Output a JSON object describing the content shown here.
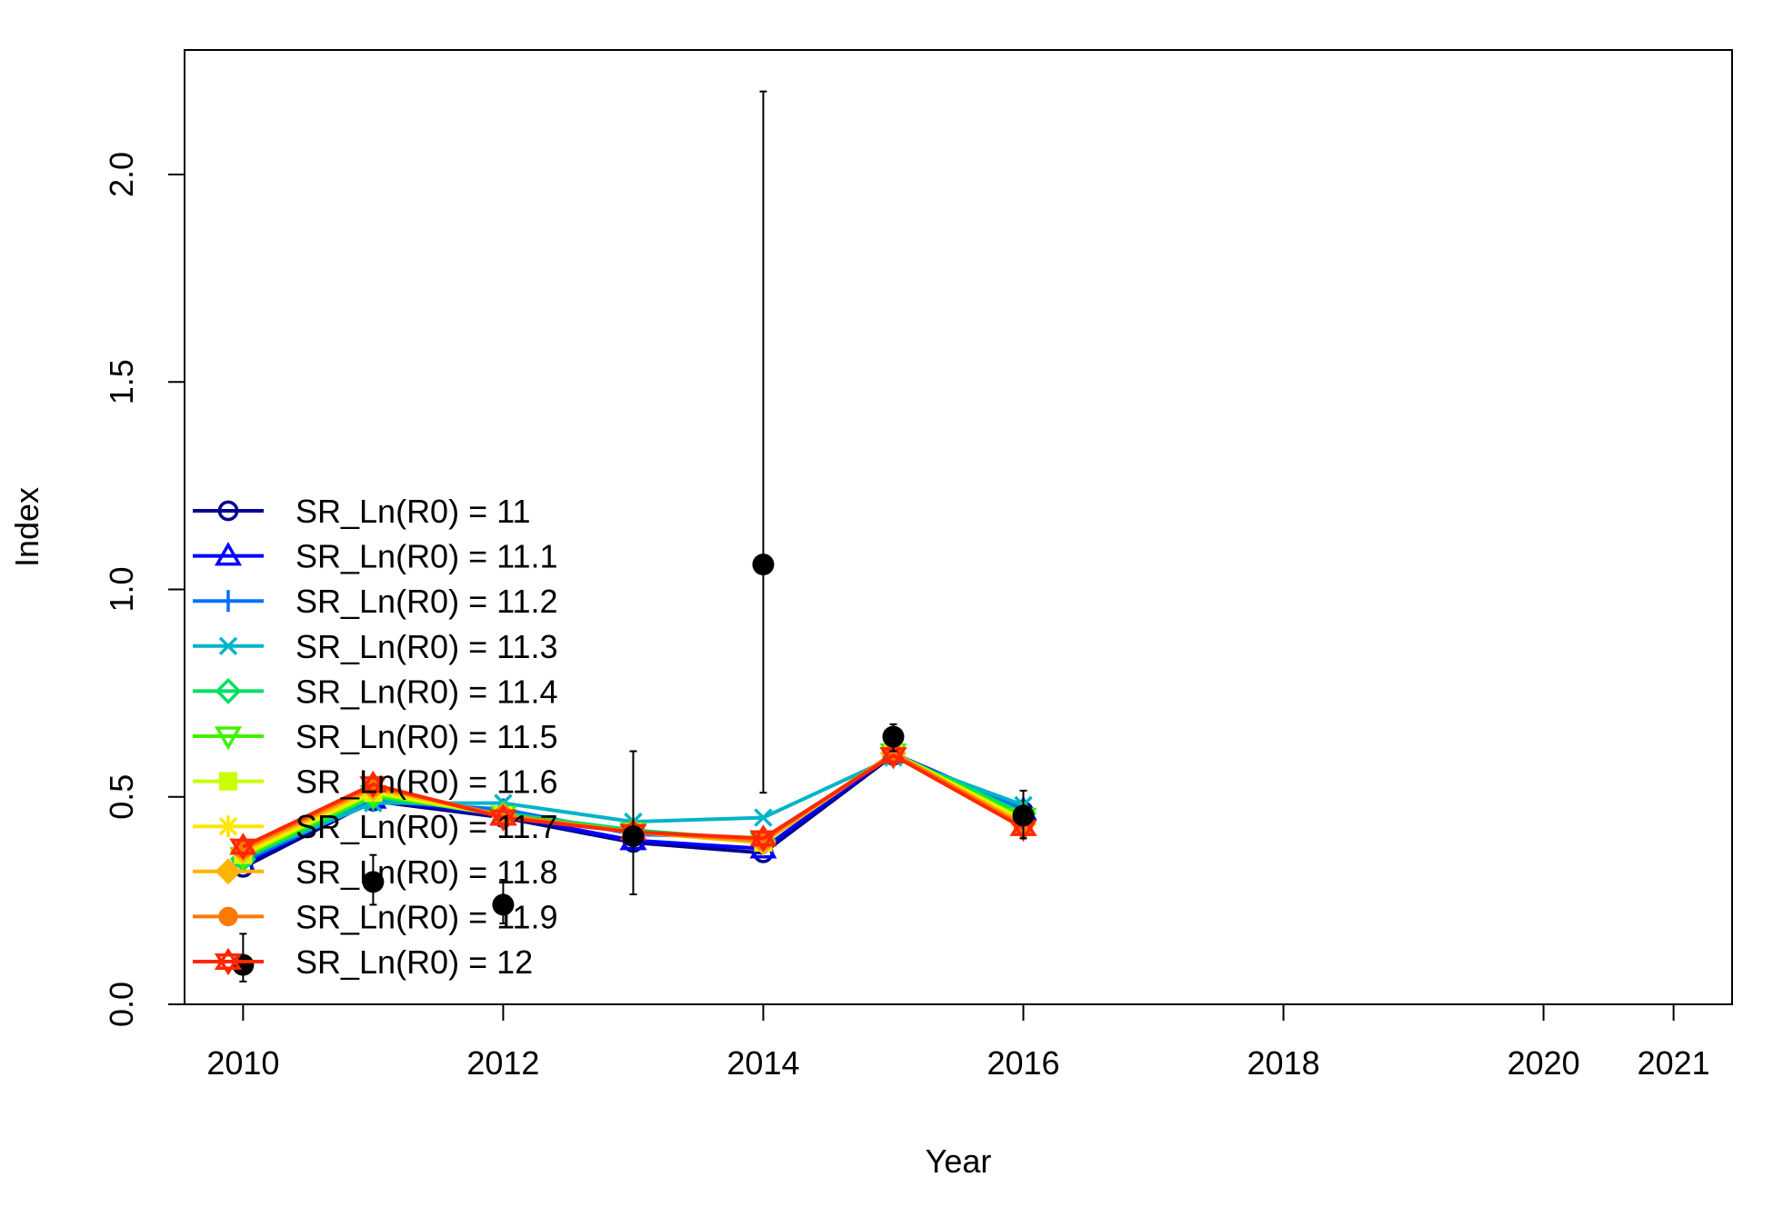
{
  "chart_data": {
    "type": "line",
    "title": "",
    "xlabel": "Year",
    "ylabel": "Index",
    "xlim": [
      2009.55,
      2021.45
    ],
    "ylim": [
      0,
      2.3
    ],
    "x_ticks": [
      2010,
      2012,
      2014,
      2016,
      2018,
      2020,
      2021
    ],
    "y_ticks": [
      0.0,
      0.5,
      1.0,
      1.5,
      2.0
    ],
    "y_tick_labels": [
      "0.0",
      "0.5",
      "1.0",
      "1.5",
      "2.0"
    ],
    "legend_position": "bottom-left",
    "grid": false,
    "years": [
      2010,
      2011,
      2012,
      2013,
      2014,
      2015,
      2016
    ],
    "series": [
      {
        "name": "SR_Ln(R0) =  11",
        "color": "#00008F",
        "marker": "circle-open",
        "values": [
          0.33,
          0.49,
          0.45,
          0.39,
          0.365,
          0.6,
          0.465
        ]
      },
      {
        "name": "SR_Ln(R0) =  11.1",
        "color": "#0000FF",
        "marker": "triangle-up",
        "values": [
          0.34,
          0.495,
          0.455,
          0.395,
          0.375,
          0.605,
          0.468
        ]
      },
      {
        "name": "SR_Ln(R0) =  11.2",
        "color": "#0070FF",
        "marker": "plus",
        "values": [
          0.345,
          0.49,
          0.47,
          0.41,
          0.4,
          0.6,
          0.47
        ]
      },
      {
        "name": "SR_Ln(R0) =  11.3",
        "color": "#00B4C8",
        "marker": "cross",
        "values": [
          0.355,
          0.485,
          0.485,
          0.44,
          0.45,
          0.595,
          0.48
        ]
      },
      {
        "name": "SR_Ln(R0) =  11.4",
        "color": "#00E060",
        "marker": "diamond-open",
        "values": [
          0.35,
          0.5,
          0.46,
          0.42,
          0.395,
          0.605,
          0.46
        ]
      },
      {
        "name": "SR_Ln(R0) =  11.5",
        "color": "#40F000",
        "marker": "triangle-down",
        "values": [
          0.355,
          0.505,
          0.455,
          0.415,
          0.39,
          0.605,
          0.45
        ]
      },
      {
        "name": "SR_Ln(R0) =  11.6",
        "color": "#C8FF00",
        "marker": "square",
        "values": [
          0.36,
          0.51,
          0.455,
          0.415,
          0.39,
          0.605,
          0.445
        ]
      },
      {
        "name": "SR_Ln(R0) =  11.7",
        "color": "#FFE600",
        "marker": "asterisk",
        "values": [
          0.365,
          0.515,
          0.455,
          0.415,
          0.39,
          0.605,
          0.44
        ]
      },
      {
        "name": "SR_Ln(R0) =  11.8",
        "color": "#FFB400",
        "marker": "diamond",
        "values": [
          0.37,
          0.52,
          0.455,
          0.415,
          0.39,
          0.605,
          0.435
        ]
      },
      {
        "name": "SR_Ln(R0) =  11.9",
        "color": "#FF7800",
        "marker": "circle",
        "values": [
          0.375,
          0.525,
          0.455,
          0.415,
          0.395,
          0.605,
          0.43
        ]
      },
      {
        "name": "SR_Ln(R0) =  12",
        "color": "#FF2800",
        "marker": "star",
        "values": [
          0.38,
          0.53,
          0.45,
          0.415,
          0.4,
          0.6,
          0.425
        ]
      }
    ],
    "observed": {
      "color": "#000000",
      "years": [
        2010,
        2011,
        2012,
        2013,
        2014,
        2015,
        2016
      ],
      "values": [
        0.095,
        0.295,
        0.24,
        0.405,
        1.06,
        0.645,
        0.455
      ],
      "lower": [
        0.055,
        0.24,
        0.195,
        0.265,
        0.51,
        0.61,
        0.4
      ],
      "upper": [
        0.17,
        0.36,
        0.3,
        0.61,
        2.2,
        0.675,
        0.515
      ]
    }
  }
}
